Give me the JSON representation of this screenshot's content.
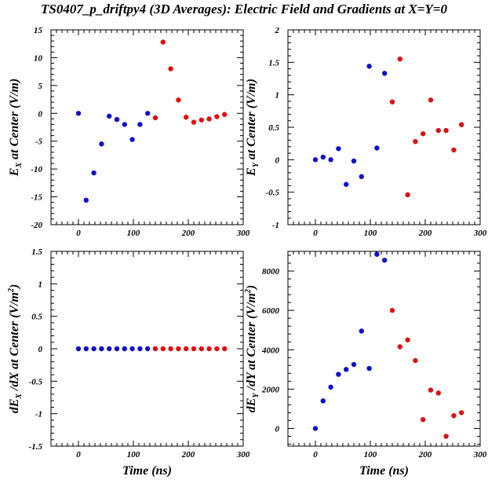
{
  "title": "TS0407_p_driftpy4 (3D Averages): Electric Field and Gradients at X=Y=0",
  "colors": {
    "blue": "#1010c8",
    "red": "#e01010",
    "axis": "#000000"
  },
  "chart_data": [
    {
      "type": "scatter",
      "ylabel": {
        "main": "E",
        "sub": "X",
        "tail": " at Center (V/m)"
      },
      "xlabel": "",
      "xlim": [
        -50,
        300
      ],
      "ylim": [
        -20,
        15
      ],
      "xticks": [
        0,
        100,
        200,
        300
      ],
      "yticks": [
        -20,
        -15,
        -10,
        -5,
        0,
        5,
        10,
        15
      ],
      "series": [
        {
          "color": "blue",
          "x": [
            0,
            14,
            28,
            42,
            56,
            70,
            84,
            98,
            112,
            126
          ],
          "y": [
            0,
            -15.6,
            -10.7,
            -5.5,
            -0.5,
            -1.1,
            -2,
            -4.7,
            -2,
            0
          ]
        },
        {
          "color": "red",
          "x": [
            140,
            154,
            168,
            182,
            196,
            210,
            224,
            238,
            252,
            266
          ],
          "y": [
            -0.8,
            12.8,
            8,
            2.4,
            -0.7,
            -1.6,
            -1.2,
            -1,
            -0.6,
            -0.2
          ]
        }
      ]
    },
    {
      "type": "scatter",
      "ylabel": {
        "main": "E",
        "sub": "Y",
        "tail": " at Center (V/m)"
      },
      "xlabel": "",
      "xlim": [
        -50,
        300
      ],
      "ylim": [
        -1,
        2
      ],
      "xticks": [
        0,
        100,
        200,
        300
      ],
      "yticks": [
        -1,
        -0.5,
        0,
        0.5,
        1,
        1.5,
        2
      ],
      "series": [
        {
          "color": "blue",
          "x": [
            0,
            14,
            28,
            42,
            56,
            70,
            84,
            98,
            112,
            126
          ],
          "y": [
            0,
            0.04,
            0,
            0.17,
            -0.38,
            -0.02,
            -0.26,
            1.44,
            0.18,
            1.33
          ]
        },
        {
          "color": "red",
          "x": [
            140,
            154,
            168,
            182,
            196,
            210,
            224,
            238,
            252,
            266
          ],
          "y": [
            0.89,
            1.55,
            -0.54,
            0.28,
            0.4,
            0.92,
            0.45,
            0.45,
            0.15,
            0.54
          ]
        }
      ]
    },
    {
      "type": "scatter",
      "ylabel": {
        "main": "dE",
        "sub": "X",
        "tail": " /dX at Center (V/m",
        "sup": "2",
        "close": ")"
      },
      "xlabel": "Time (ns)",
      "xlim": [
        -50,
        300
      ],
      "ylim": [
        -1.5,
        1.5
      ],
      "xticks": [
        0,
        100,
        200,
        300
      ],
      "yticks": [
        -1.5,
        -1,
        -0.5,
        0,
        0.5,
        1,
        1.5
      ],
      "series": [
        {
          "color": "blue",
          "x": [
            0,
            14,
            28,
            42,
            56,
            70,
            84,
            98,
            112,
            126
          ],
          "y": [
            0,
            0,
            0,
            0,
            0,
            0,
            0,
            0,
            0,
            0
          ]
        },
        {
          "color": "red",
          "x": [
            140,
            154,
            168,
            182,
            196,
            210,
            224,
            238,
            252,
            266
          ],
          "y": [
            0,
            0,
            0,
            0,
            0,
            0,
            0,
            0,
            0,
            0
          ]
        }
      ]
    },
    {
      "type": "scatter",
      "ylabel": {
        "main": "dE",
        "sub": "Y",
        "tail": " /dY at Center (V/m",
        "sup": "2",
        "close": ")"
      },
      "xlabel": "Time (ns)",
      "xlim": [
        -50,
        300
      ],
      "ylim": [
        -900,
        9000
      ],
      "xticks": [
        0,
        100,
        200,
        300
      ],
      "yticks": [
        0,
        2000,
        4000,
        6000,
        8000
      ],
      "series": [
        {
          "color": "blue",
          "x": [
            0,
            14,
            28,
            42,
            56,
            70,
            84,
            98,
            112,
            126
          ],
          "y": [
            0,
            1400,
            2100,
            2750,
            3000,
            3250,
            4950,
            3050,
            8850,
            8550
          ]
        },
        {
          "color": "red",
          "x": [
            140,
            154,
            168,
            182,
            196,
            210,
            224,
            238,
            252,
            266
          ],
          "y": [
            6000,
            4150,
            4500,
            3450,
            450,
            1950,
            1800,
            -400,
            650,
            800
          ]
        }
      ]
    }
  ]
}
